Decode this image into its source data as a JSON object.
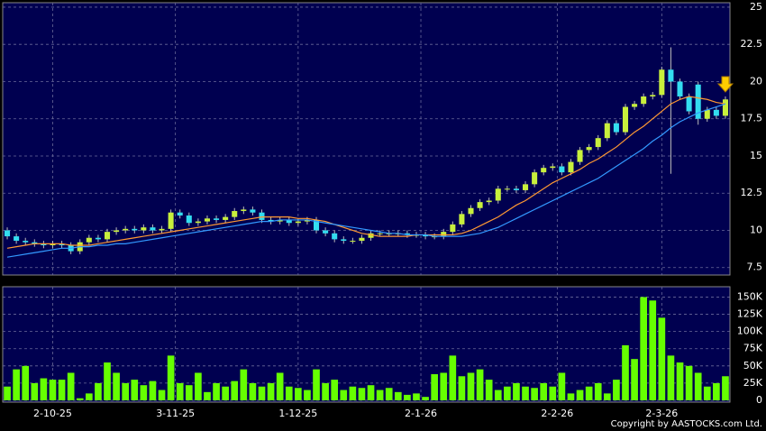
{
  "chart_data": [
    {
      "type": "candlestick",
      "up_color": "#c8f03c",
      "down_color": "#33ddf0",
      "wick_color": "#bbbbbb",
      "ylim": [
        7.0,
        25.3
      ],
      "yticks": [
        7.5,
        10,
        12.5,
        15,
        17.5,
        20,
        22.5,
        25
      ],
      "xlim": [
        0,
        80
      ],
      "grid": true,
      "open": [
        10.0,
        9.6,
        9.3,
        9.2,
        9.1,
        9.0,
        9.1,
        9.0,
        8.6,
        9.2,
        9.5,
        9.4,
        9.9,
        10.0,
        10.1,
        10.0,
        10.2,
        10.0,
        10.1,
        11.2,
        11.0,
        10.5,
        10.6,
        10.8,
        10.7,
        10.9,
        11.3,
        11.4,
        11.2,
        10.7,
        10.6,
        10.7,
        10.5,
        10.6,
        10.7,
        10.0,
        9.8,
        9.4,
        9.3,
        9.3,
        9.5,
        9.8,
        9.8,
        9.8,
        9.8,
        9.7,
        9.7,
        9.6,
        9.6,
        9.9,
        10.4,
        11.1,
        11.5,
        11.9,
        12.0,
        12.8,
        12.8,
        12.7,
        13.1,
        13.9,
        14.2,
        14.3,
        13.9,
        14.6,
        15.4,
        15.6,
        16.2,
        17.2,
        16.6,
        18.3,
        18.5,
        19.0,
        19.1,
        20.8,
        20.0,
        19.0,
        19.8,
        17.5,
        18.1,
        17.7
      ],
      "high": [
        10.2,
        9.8,
        9.5,
        9.4,
        9.3,
        9.3,
        9.3,
        9.2,
        9.4,
        9.7,
        9.7,
        10.1,
        10.2,
        10.3,
        10.3,
        10.4,
        10.4,
        10.3,
        11.4,
        11.4,
        11.2,
        10.8,
        11.0,
        11.0,
        11.1,
        11.5,
        11.6,
        11.6,
        11.4,
        10.9,
        10.9,
        10.9,
        10.8,
        10.9,
        10.9,
        10.2,
        10.0,
        9.6,
        9.5,
        9.7,
        10.0,
        10.0,
        10.0,
        10.0,
        10.0,
        9.9,
        9.9,
        9.8,
        10.1,
        10.6,
        11.3,
        11.7,
        12.1,
        12.2,
        13.0,
        13.0,
        13.0,
        13.3,
        14.1,
        14.4,
        14.5,
        14.5,
        14.8,
        15.6,
        15.8,
        16.4,
        17.4,
        17.4,
        18.5,
        18.7,
        19.2,
        19.3,
        21.0,
        22.3,
        20.2,
        19.2,
        20.0,
        18.3,
        18.3,
        19.0
      ],
      "low": [
        9.4,
        9.1,
        9.0,
        8.9,
        8.8,
        8.8,
        8.8,
        8.4,
        8.4,
        9.0,
        9.2,
        9.2,
        9.7,
        9.8,
        9.8,
        9.8,
        9.8,
        9.8,
        9.9,
        10.8,
        10.3,
        10.3,
        10.4,
        10.5,
        10.5,
        10.7,
        11.1,
        11.0,
        10.5,
        10.4,
        10.4,
        10.3,
        10.3,
        10.4,
        9.8,
        9.6,
        9.2,
        9.1,
        9.1,
        9.1,
        9.3,
        9.6,
        9.6,
        9.6,
        9.5,
        9.5,
        9.4,
        9.4,
        9.4,
        9.7,
        10.2,
        10.9,
        11.3,
        11.7,
        11.8,
        12.6,
        12.5,
        12.5,
        12.9,
        13.7,
        14.0,
        13.7,
        13.7,
        14.4,
        15.2,
        15.4,
        16.0,
        16.4,
        16.4,
        18.1,
        18.3,
        18.8,
        18.9,
        13.8,
        18.8,
        17.8,
        17.1,
        17.3,
        17.5,
        17.5
      ],
      "close": [
        9.6,
        9.3,
        9.2,
        9.1,
        9.0,
        9.1,
        9.0,
        8.6,
        9.2,
        9.5,
        9.4,
        9.9,
        10.0,
        10.1,
        10.0,
        10.2,
        10.0,
        10.1,
        11.2,
        11.0,
        10.5,
        10.6,
        10.8,
        10.7,
        10.9,
        11.3,
        11.4,
        11.2,
        10.7,
        10.6,
        10.7,
        10.5,
        10.6,
        10.7,
        10.0,
        9.8,
        9.4,
        9.3,
        9.3,
        9.5,
        9.8,
        9.8,
        9.8,
        9.8,
        9.7,
        9.7,
        9.6,
        9.6,
        9.9,
        10.4,
        11.1,
        11.5,
        11.9,
        12.0,
        12.8,
        12.8,
        12.7,
        13.1,
        13.9,
        14.2,
        14.3,
        13.9,
        14.6,
        15.4,
        15.6,
        16.2,
        17.2,
        16.6,
        18.3,
        18.5,
        19.0,
        19.1,
        20.8,
        20.0,
        19.0,
        18.0,
        17.5,
        18.1,
        17.7,
        18.8
      ],
      "series": [
        {
          "color": "#ff9933",
          "values": [
            8.8,
            8.9,
            9.0,
            9.1,
            9.1,
            9.1,
            9.1,
            9.0,
            9.0,
            9.0,
            9.1,
            9.2,
            9.3,
            9.4,
            9.5,
            9.6,
            9.7,
            9.8,
            9.9,
            10.0,
            10.1,
            10.2,
            10.3,
            10.4,
            10.5,
            10.6,
            10.7,
            10.8,
            10.9,
            10.9,
            10.9,
            10.9,
            10.8,
            10.8,
            10.7,
            10.6,
            10.4,
            10.2,
            10.0,
            9.8,
            9.7,
            9.6,
            9.6,
            9.6,
            9.6,
            9.7,
            9.7,
            9.7,
            9.7,
            9.7,
            9.8,
            10.0,
            10.3,
            10.6,
            10.9,
            11.3,
            11.7,
            12.0,
            12.4,
            12.8,
            13.2,
            13.5,
            13.8,
            14.1,
            14.5,
            14.8,
            15.2,
            15.6,
            16.1,
            16.6,
            17.0,
            17.5,
            18.0,
            18.5,
            18.8,
            19.0,
            18.9,
            18.8,
            18.6,
            18.5
          ]
        },
        {
          "color": "#3399ff",
          "values": [
            8.2,
            8.3,
            8.4,
            8.5,
            8.6,
            8.7,
            8.8,
            8.8,
            8.9,
            8.9,
            9.0,
            9.0,
            9.1,
            9.1,
            9.2,
            9.3,
            9.4,
            9.5,
            9.6,
            9.7,
            9.8,
            9.9,
            10.0,
            10.1,
            10.2,
            10.3,
            10.4,
            10.5,
            10.6,
            10.6,
            10.7,
            10.7,
            10.7,
            10.7,
            10.6,
            10.5,
            10.4,
            10.3,
            10.2,
            10.1,
            10.0,
            9.9,
            9.8,
            9.8,
            9.7,
            9.7,
            9.7,
            9.6,
            9.6,
            9.6,
            9.6,
            9.7,
            9.8,
            10.0,
            10.2,
            10.5,
            10.8,
            11.1,
            11.4,
            11.7,
            12.0,
            12.3,
            12.6,
            12.9,
            13.2,
            13.5,
            13.9,
            14.3,
            14.7,
            15.1,
            15.5,
            16.0,
            16.4,
            16.9,
            17.3,
            17.6,
            17.9,
            18.1,
            18.3,
            18.5
          ]
        }
      ]
    },
    {
      "type": "bar",
      "color": "#66ff00",
      "ylim": [
        0,
        165000
      ],
      "xlim": [
        0,
        80
      ],
      "grid": true,
      "yticks": [
        0,
        {
          "value": 25000,
          "label": "25K"
        },
        {
          "value": 50000,
          "label": "50K"
        },
        {
          "value": 75000,
          "label": "75K"
        },
        {
          "value": 100000,
          "label": "100K"
        },
        {
          "value": 125000,
          "label": "125K"
        },
        {
          "value": 150000,
          "label": "150K"
        }
      ],
      "xticks": [
        {
          "value": 5.5,
          "label": "2-10-25"
        },
        {
          "value": 19,
          "label": "3-11-25"
        },
        {
          "value": 32.5,
          "label": "1-12-25"
        },
        {
          "value": 46,
          "label": "2-1-26"
        },
        {
          "value": 61,
          "label": "2-2-26"
        },
        {
          "value": 72.5,
          "label": "2-3-26"
        }
      ],
      "values": [
        20000,
        45000,
        50000,
        25000,
        32000,
        30000,
        30000,
        40000,
        3000,
        10000,
        25000,
        55000,
        40000,
        25000,
        30000,
        22000,
        28000,
        15000,
        65000,
        25000,
        22000,
        40000,
        12000,
        25000,
        20000,
        28000,
        45000,
        25000,
        20000,
        25000,
        40000,
        20000,
        18000,
        15000,
        45000,
        25000,
        30000,
        15000,
        20000,
        18000,
        22000,
        15000,
        18000,
        12000,
        8000,
        10000,
        5000,
        38000,
        40000,
        65000,
        35000,
        40000,
        45000,
        30000,
        15000,
        20000,
        25000,
        20000,
        18000,
        25000,
        20000,
        40000,
        10000,
        15000,
        20000,
        25000,
        10000,
        30000,
        80000,
        60000,
        150000,
        145000,
        120000,
        65000,
        55000,
        50000,
        40000,
        20000,
        25000,
        35000
      ]
    }
  ],
  "copyright": "Copyright by AASTOCKS.com Ltd."
}
